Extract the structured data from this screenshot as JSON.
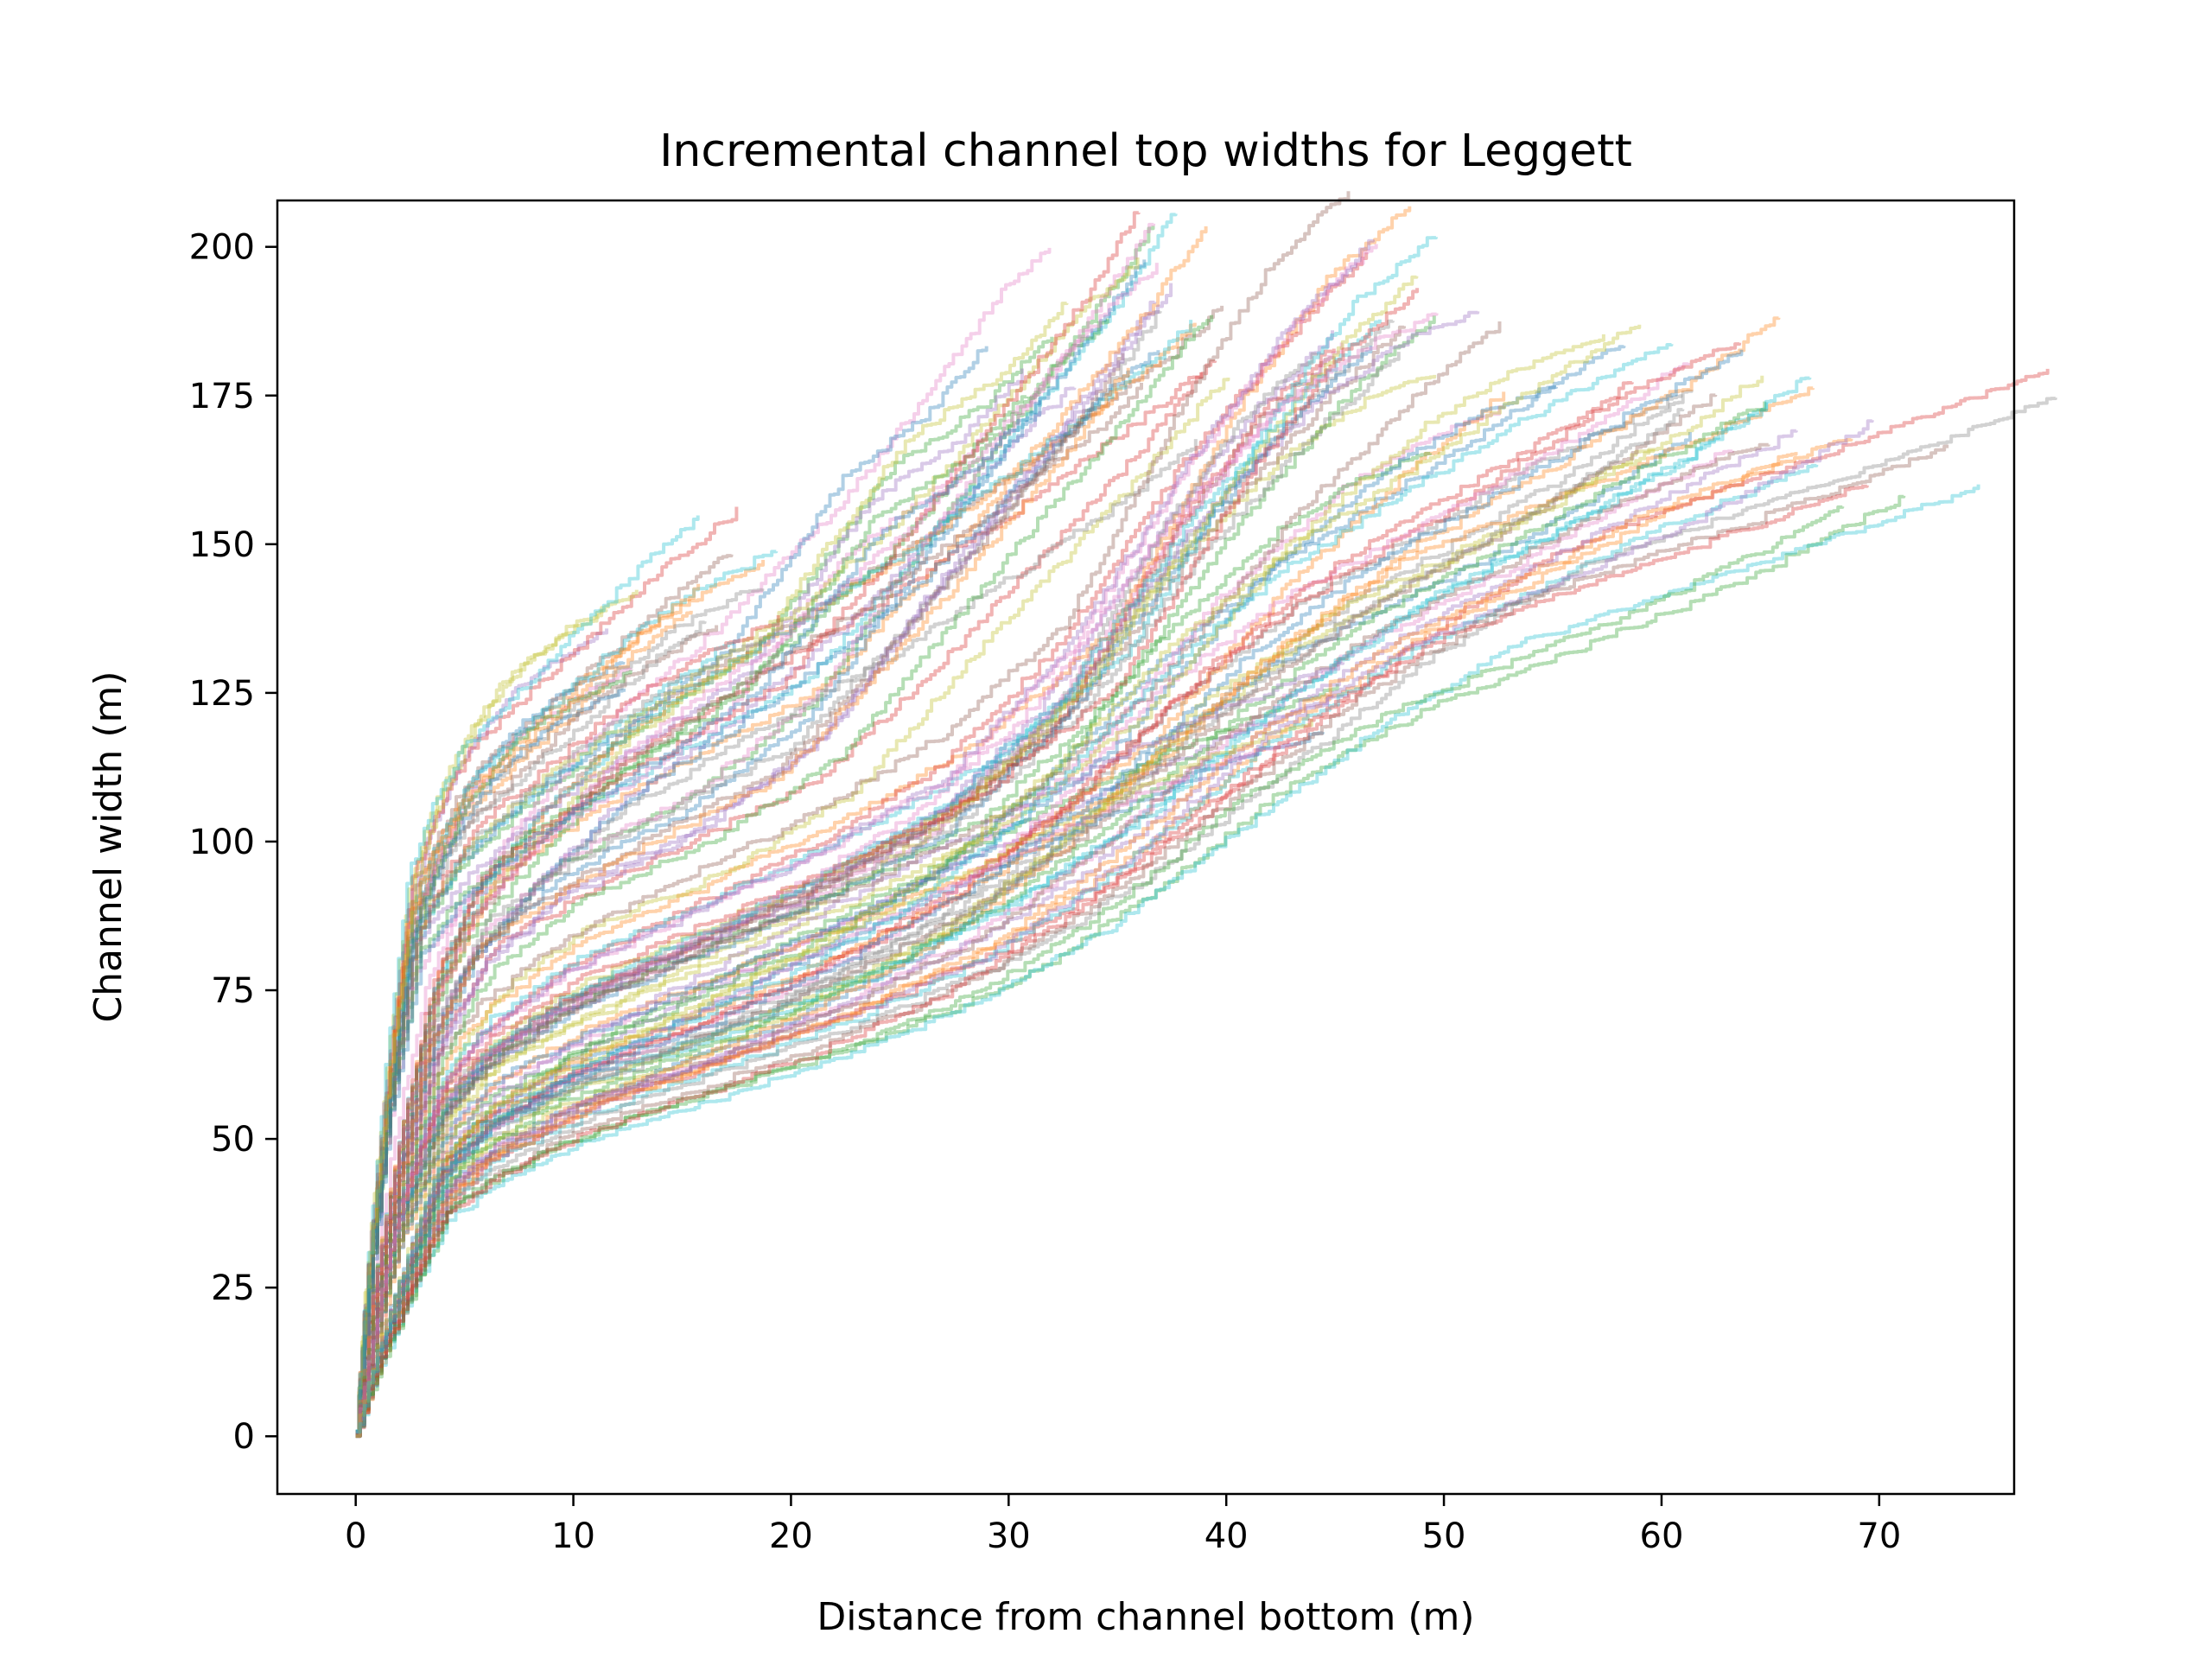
{
  "chart_data": {
    "type": "line",
    "title": "Incremental channel top widths for Leggett",
    "xlabel": "Distance from channel bottom (m)",
    "ylabel": "Channel width (m)",
    "xlim": [
      -3.6,
      76.2
    ],
    "ylim": [
      -9.7,
      207.8
    ],
    "xticks": [
      0,
      10,
      20,
      30,
      40,
      50,
      60,
      70
    ],
    "yticks": [
      0,
      25,
      50,
      75,
      100,
      125,
      150,
      175,
      200
    ],
    "grid": false,
    "legend": "none",
    "series_alpha": 0.35,
    "series_count": 120,
    "series_colors": [
      "#1f77b4",
      "#ff7f0e",
      "#2ca02c",
      "#d62728",
      "#9467bd",
      "#8c564b",
      "#e377c2",
      "#7f7f7f",
      "#bcbd22",
      "#17becf"
    ],
    "series": [
      {
        "end": [
          12,
          134
        ],
        "x": [
          0,
          0.5,
          1.5,
          2.5,
          3.5,
          5,
          7,
          9,
          11,
          12
        ],
        "y": [
          0,
          25,
          60,
          88,
          100,
          112,
          122,
          128,
          132,
          134
        ]
      },
      {
        "end": [
          16.5,
          145
        ],
        "x": [
          0,
          0.5,
          1.5,
          2.5,
          3.5,
          5,
          8,
          11,
          14,
          16.5
        ],
        "y": [
          0,
          25,
          60,
          88,
          98,
          108,
          118,
          128,
          138,
          145
        ]
      },
      {
        "end": [
          31,
          182
        ],
        "x": [
          0,
          0.5,
          1.5,
          3,
          5,
          8,
          12,
          18,
          24,
          28,
          31
        ],
        "y": [
          0,
          22,
          55,
          85,
          95,
          105,
          115,
          130,
          160,
          170,
          182
        ]
      },
      {
        "end": [
          36.5,
          192
        ],
        "x": [
          0,
          0.7,
          2,
          3.5,
          6,
          10,
          15,
          20,
          25,
          30,
          34,
          36.5
        ],
        "y": [
          0,
          20,
          45,
          70,
          88,
          98,
          108,
          118,
          138,
          160,
          178,
          192
        ]
      },
      {
        "end": [
          38.5,
          190
        ],
        "x": [
          0,
          0.7,
          2,
          4,
          6,
          10,
          16,
          22,
          27,
          32,
          36,
          38.5
        ],
        "y": [
          0,
          18,
          42,
          64,
          78,
          90,
          100,
          115,
          138,
          160,
          178,
          190
        ]
      },
      {
        "end": [
          47.5,
          196
        ],
        "x": [
          0,
          0.8,
          2,
          4,
          6,
          10,
          16,
          22,
          28,
          34,
          40,
          44,
          47.5
        ],
        "y": [
          0,
          18,
          40,
          60,
          68,
          78,
          88,
          98,
          110,
          128,
          165,
          185,
          196
        ]
      },
      {
        "end": [
          48.5,
          197
        ],
        "x": [
          0,
          0.8,
          2,
          4,
          6,
          10,
          16,
          22,
          28,
          34,
          40,
          45,
          48.5
        ],
        "y": [
          0,
          17,
          38,
          57,
          66,
          76,
          86,
          96,
          108,
          130,
          162,
          185,
          197
        ]
      },
      {
        "end": [
          49,
          189
        ],
        "x": [
          0,
          0.8,
          2,
          4,
          6,
          10,
          16,
          22,
          28,
          34,
          40,
          45,
          49
        ],
        "y": [
          0,
          16,
          36,
          55,
          64,
          74,
          84,
          94,
          106,
          126,
          155,
          175,
          189
        ]
      },
      {
        "end": [
          53.5,
          179
        ],
        "x": [
          0,
          0.8,
          2,
          4,
          6,
          10,
          16,
          22,
          28,
          34,
          40,
          46,
          50,
          53.5
        ],
        "y": [
          0,
          15,
          34,
          52,
          60,
          68,
          78,
          88,
          100,
          118,
          145,
          165,
          174,
          179
        ]
      },
      {
        "end": [
          62,
          183
        ],
        "x": [
          0,
          1,
          2.5,
          4,
          6,
          10,
          16,
          22,
          28,
          34,
          40,
          46,
          52,
          58,
          62
        ],
        "y": [
          0,
          14,
          30,
          46,
          54,
          62,
          70,
          80,
          92,
          108,
          128,
          145,
          158,
          172,
          183
        ]
      },
      {
        "end": [
          63,
          175
        ],
        "x": [
          0,
          1,
          2.5,
          4,
          6,
          10,
          16,
          22,
          28,
          34,
          40,
          46,
          52,
          58,
          63
        ],
        "y": [
          0,
          13,
          28,
          43,
          50,
          58,
          66,
          76,
          88,
          104,
          124,
          140,
          152,
          165,
          175
        ]
      },
      {
        "end": [
          65,
          171
        ],
        "x": [
          0,
          1,
          2.5,
          4,
          6,
          10,
          16,
          22,
          28,
          34,
          40,
          46,
          52,
          58,
          65
        ],
        "y": [
          0,
          12,
          27,
          41,
          48,
          56,
          64,
          73,
          84,
          100,
          120,
          136,
          148,
          160,
          171
        ]
      },
      {
        "end": [
          66.5,
          168
        ],
        "x": [
          0,
          1,
          2.5,
          4,
          6,
          10,
          16,
          22,
          28,
          34,
          40,
          46,
          52,
          58,
          63,
          66.5
        ],
        "y": [
          0,
          12,
          26,
          40,
          46,
          54,
          62,
          70,
          80,
          96,
          116,
          130,
          140,
          150,
          160,
          168
        ]
      },
      {
        "end": [
          72.5,
          170
        ],
        "x": [
          0,
          1,
          2.5,
          4,
          6,
          10,
          16,
          22,
          28,
          34,
          40,
          46,
          52,
          58,
          64,
          69,
          72.5
        ],
        "y": [
          0,
          12,
          25,
          38,
          44,
          52,
          60,
          68,
          78,
          92,
          110,
          128,
          142,
          150,
          158,
          165,
          170
        ]
      },
      {
        "end": [
          46,
          126
        ],
        "x": [
          0,
          1,
          2.5,
          4,
          6,
          10,
          16,
          22,
          28,
          34,
          40,
          46
        ],
        "y": [
          0,
          14,
          30,
          46,
          54,
          64,
          75,
          86,
          97,
          108,
          118,
          126
        ]
      },
      {
        "end": [
          37,
          177
        ],
        "x": [
          0,
          0.6,
          2,
          3.5,
          5,
          8,
          12,
          18,
          24,
          30,
          35,
          37
        ],
        "y": [
          0,
          20,
          48,
          72,
          85,
          98,
          112,
          126,
          140,
          156,
          170,
          177
        ]
      },
      {
        "end": [
          34.5,
          186
        ],
        "x": [
          0,
          0.6,
          2,
          3.5,
          5,
          8,
          12,
          18,
          24,
          29,
          32,
          34.5
        ],
        "y": [
          0,
          20,
          48,
          70,
          82,
          95,
          110,
          126,
          145,
          165,
          178,
          186
        ]
      },
      {
        "end": [
          18,
          140
        ],
        "x": [
          0,
          0.5,
          1.5,
          2.5,
          3.5,
          5,
          8,
          11,
          14,
          18
        ],
        "y": [
          0,
          24,
          58,
          85,
          94,
          104,
          114,
          124,
          132,
          140
        ]
      }
    ]
  }
}
